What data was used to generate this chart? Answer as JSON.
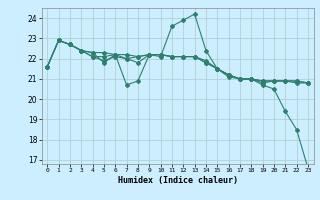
{
  "title": "",
  "xlabel": "Humidex (Indice chaleur)",
  "background_color": "#cceeff",
  "grid_color": "#aacccc",
  "line_color": "#2d7f6f",
  "xlim": [
    -0.5,
    23.5
  ],
  "ylim": [
    16.8,
    24.5
  ],
  "yticks": [
    17,
    18,
    19,
    20,
    21,
    22,
    23,
    24
  ],
  "xticks": [
    0,
    1,
    2,
    3,
    4,
    5,
    6,
    7,
    8,
    9,
    10,
    11,
    12,
    13,
    14,
    15,
    16,
    17,
    18,
    19,
    20,
    21,
    22,
    23
  ],
  "series": [
    [
      21.6,
      22.9,
      22.7,
      22.4,
      22.3,
      21.8,
      22.2,
      20.7,
      20.9,
      22.2,
      22.1,
      23.6,
      23.9,
      24.2,
      22.4,
      21.5,
      21.1,
      21.0,
      21.0,
      20.7,
      20.5,
      19.4,
      18.5,
      16.6
    ],
    [
      21.6,
      22.9,
      22.7,
      22.4,
      22.1,
      22.1,
      22.2,
      22.2,
      22.1,
      22.2,
      22.2,
      22.1,
      22.1,
      22.1,
      21.8,
      21.5,
      21.2,
      21.0,
      21.0,
      20.9,
      20.9,
      20.9,
      20.9,
      20.8
    ],
    [
      21.6,
      22.9,
      22.7,
      22.4,
      22.3,
      22.3,
      22.2,
      22.0,
      22.1,
      22.2,
      22.2,
      22.1,
      22.1,
      22.1,
      21.9,
      21.5,
      21.2,
      21.0,
      21.0,
      20.9,
      20.9,
      20.9,
      20.9,
      20.8
    ],
    [
      21.6,
      22.9,
      22.7,
      22.4,
      22.1,
      21.9,
      22.1,
      22.0,
      21.8,
      22.2,
      22.2,
      22.1,
      22.1,
      22.1,
      21.8,
      21.5,
      21.2,
      21.0,
      21.0,
      20.8,
      20.9,
      20.9,
      20.8,
      20.8
    ]
  ]
}
